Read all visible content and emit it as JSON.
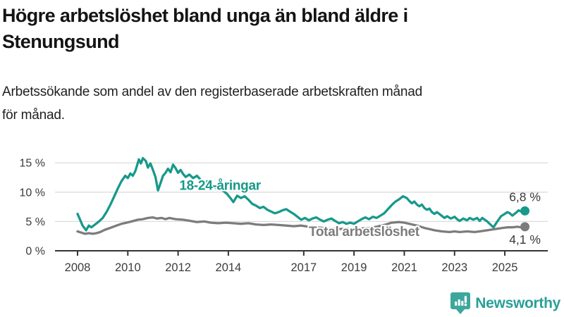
{
  "header": {
    "title_lines": [
      "Högre arbetslöshet bland unga än bland äldre i",
      "Stenungsund"
    ],
    "subtitle_lines": [
      "Arbetssökande som andel av den registerbaserade arbetskraften månad",
      "för månad."
    ]
  },
  "chart_data": {
    "type": "line",
    "title": "Högre arbetslöshet bland unga än bland äldre i Stenungsund",
    "subtitle": "Arbetssökande som andel av den registerbaserade arbetskraften månad för månad.",
    "xlabel": "",
    "ylabel": "",
    "grid": "horizontal-only",
    "x_axis": {
      "ticks": [
        2008,
        2010,
        2012,
        2014,
        2017,
        2019,
        2021,
        2023,
        2025
      ],
      "range": [
        2008,
        2025.8
      ]
    },
    "y_axis": {
      "ticks": [
        0,
        5,
        10,
        15
      ],
      "suffix": " %",
      "range": [
        0,
        16.8
      ]
    },
    "colors": {
      "youth": "#17998a",
      "total": "#7c7c7c",
      "grid": "#dcdcdc",
      "axis": "#333333",
      "tick_text": "#3c3c3c",
      "value_label": "#3a3a3a"
    },
    "series": [
      {
        "name": "18-24-åringar",
        "color": "#17998a",
        "end_value_label": "6,8 %",
        "end_value": 6.8,
        "label_anchor": {
          "x": 2012.05,
          "y": 10.4
        },
        "points": [
          [
            2008.0,
            6.3
          ],
          [
            2008.1,
            5.3
          ],
          [
            2008.2,
            4.3
          ],
          [
            2008.34,
            3.5
          ],
          [
            2008.45,
            4.3
          ],
          [
            2008.55,
            4.0
          ],
          [
            2008.7,
            4.5
          ],
          [
            2008.85,
            5.0
          ],
          [
            2009.0,
            5.6
          ],
          [
            2009.15,
            6.6
          ],
          [
            2009.3,
            7.8
          ],
          [
            2009.45,
            9.2
          ],
          [
            2009.6,
            10.6
          ],
          [
            2009.75,
            11.9
          ],
          [
            2009.9,
            12.8
          ],
          [
            2010.0,
            12.4
          ],
          [
            2010.1,
            13.2
          ],
          [
            2010.2,
            12.8
          ],
          [
            2010.3,
            13.6
          ],
          [
            2010.44,
            15.6
          ],
          [
            2010.52,
            14.9
          ],
          [
            2010.6,
            15.8
          ],
          [
            2010.72,
            15.3
          ],
          [
            2010.8,
            14.2
          ],
          [
            2010.9,
            14.9
          ],
          [
            2011.0,
            13.8
          ],
          [
            2011.1,
            12.6
          ],
          [
            2011.2,
            10.3
          ],
          [
            2011.3,
            11.5
          ],
          [
            2011.4,
            12.8
          ],
          [
            2011.5,
            13.3
          ],
          [
            2011.6,
            14.0
          ],
          [
            2011.7,
            13.4
          ],
          [
            2011.8,
            14.7
          ],
          [
            2011.9,
            14.1
          ],
          [
            2012.0,
            13.3
          ],
          [
            2012.1,
            13.8
          ],
          [
            2012.2,
            13.1
          ],
          [
            2012.3,
            12.6
          ],
          [
            2012.45,
            13.0
          ],
          [
            2012.6,
            12.4
          ],
          [
            2012.75,
            12.8
          ],
          [
            2012.9,
            12.1
          ],
          [
            2013.05,
            11.6
          ],
          [
            2013.2,
            11.9
          ],
          [
            2013.35,
            11.2
          ],
          [
            2013.5,
            10.7
          ],
          [
            2013.65,
            10.9
          ],
          [
            2013.8,
            10.2
          ],
          [
            2013.95,
            9.7
          ],
          [
            2014.1,
            8.9
          ],
          [
            2014.2,
            8.3
          ],
          [
            2014.35,
            9.4
          ],
          [
            2014.5,
            9.0
          ],
          [
            2014.65,
            9.3
          ],
          [
            2014.8,
            8.7
          ],
          [
            2014.95,
            8.0
          ],
          [
            2015.1,
            7.7
          ],
          [
            2015.25,
            7.3
          ],
          [
            2015.4,
            7.5
          ],
          [
            2015.55,
            7.0
          ],
          [
            2015.7,
            6.7
          ],
          [
            2015.85,
            6.4
          ],
          [
            2016.0,
            6.6
          ],
          [
            2016.15,
            6.9
          ],
          [
            2016.3,
            7.1
          ],
          [
            2016.45,
            6.7
          ],
          [
            2016.6,
            6.3
          ],
          [
            2016.75,
            5.8
          ],
          [
            2016.9,
            5.3
          ],
          [
            2017.05,
            5.6
          ],
          [
            2017.2,
            5.2
          ],
          [
            2017.35,
            5.5
          ],
          [
            2017.5,
            5.7
          ],
          [
            2017.65,
            5.3
          ],
          [
            2017.8,
            5.0
          ],
          [
            2017.95,
            5.3
          ],
          [
            2018.1,
            5.5
          ],
          [
            2018.25,
            5.1
          ],
          [
            2018.4,
            4.7
          ],
          [
            2018.55,
            4.9
          ],
          [
            2018.7,
            4.6
          ],
          [
            2018.85,
            4.8
          ],
          [
            2019.0,
            4.6
          ],
          [
            2019.15,
            5.0
          ],
          [
            2019.3,
            5.4
          ],
          [
            2019.45,
            5.7
          ],
          [
            2019.6,
            5.4
          ],
          [
            2019.75,
            5.8
          ],
          [
            2019.9,
            5.6
          ],
          [
            2020.05,
            6.0
          ],
          [
            2020.2,
            6.4
          ],
          [
            2020.35,
            7.1
          ],
          [
            2020.5,
            7.8
          ],
          [
            2020.65,
            8.4
          ],
          [
            2020.8,
            8.8
          ],
          [
            2020.95,
            9.3
          ],
          [
            2021.1,
            9.0
          ],
          [
            2021.2,
            8.5
          ],
          [
            2021.3,
            8.1
          ],
          [
            2021.4,
            8.4
          ],
          [
            2021.5,
            7.9
          ],
          [
            2021.6,
            7.6
          ],
          [
            2021.7,
            7.9
          ],
          [
            2021.8,
            7.3
          ],
          [
            2021.9,
            7.0
          ],
          [
            2022.0,
            7.2
          ],
          [
            2022.1,
            6.6
          ],
          [
            2022.2,
            6.3
          ],
          [
            2022.3,
            6.6
          ],
          [
            2022.45,
            6.1
          ],
          [
            2022.6,
            5.6
          ],
          [
            2022.7,
            5.9
          ],
          [
            2022.85,
            5.5
          ],
          [
            2023.0,
            5.8
          ],
          [
            2023.1,
            5.4
          ],
          [
            2023.2,
            5.1
          ],
          [
            2023.35,
            5.5
          ],
          [
            2023.5,
            5.2
          ],
          [
            2023.6,
            5.6
          ],
          [
            2023.75,
            5.3
          ],
          [
            2023.9,
            5.6
          ],
          [
            2024.0,
            5.1
          ],
          [
            2024.1,
            5.6
          ],
          [
            2024.3,
            5.0
          ],
          [
            2024.45,
            4.4
          ],
          [
            2024.55,
            4.0
          ],
          [
            2024.7,
            5.0
          ],
          [
            2024.85,
            5.9
          ],
          [
            2025.0,
            6.3
          ],
          [
            2025.1,
            6.6
          ],
          [
            2025.2,
            6.4
          ],
          [
            2025.3,
            6.0
          ],
          [
            2025.45,
            6.5
          ],
          [
            2025.55,
            6.9
          ],
          [
            2025.65,
            6.7
          ],
          [
            2025.8,
            6.8
          ]
        ]
      },
      {
        "name": "Total arbetslöshet",
        "color": "#7c7c7c",
        "end_value_label": "4,1 %",
        "end_value": 4.1,
        "label_anchor": {
          "x": 2017.2,
          "y": 2.55
        },
        "points": [
          [
            2008.0,
            3.3
          ],
          [
            2008.15,
            3.1
          ],
          [
            2008.3,
            2.9
          ],
          [
            2008.45,
            3.0
          ],
          [
            2008.6,
            2.9
          ],
          [
            2008.75,
            3.0
          ],
          [
            2008.9,
            3.2
          ],
          [
            2009.1,
            3.6
          ],
          [
            2009.3,
            3.9
          ],
          [
            2009.55,
            4.3
          ],
          [
            2009.75,
            4.6
          ],
          [
            2009.95,
            4.8
          ],
          [
            2010.15,
            5.0
          ],
          [
            2010.4,
            5.3
          ],
          [
            2010.6,
            5.4
          ],
          [
            2010.8,
            5.6
          ],
          [
            2011.0,
            5.7
          ],
          [
            2011.15,
            5.5
          ],
          [
            2011.35,
            5.6
          ],
          [
            2011.5,
            5.4
          ],
          [
            2011.65,
            5.6
          ],
          [
            2011.9,
            5.4
          ],
          [
            2012.2,
            5.3
          ],
          [
            2012.5,
            5.1
          ],
          [
            2012.75,
            4.9
          ],
          [
            2013.05,
            5.0
          ],
          [
            2013.3,
            4.8
          ],
          [
            2013.6,
            4.7
          ],
          [
            2013.9,
            4.8
          ],
          [
            2014.2,
            4.7
          ],
          [
            2014.5,
            4.6
          ],
          [
            2014.8,
            4.7
          ],
          [
            2015.1,
            4.5
          ],
          [
            2015.4,
            4.4
          ],
          [
            2015.7,
            4.5
          ],
          [
            2016.0,
            4.4
          ],
          [
            2016.3,
            4.3
          ],
          [
            2016.6,
            4.2
          ],
          [
            2016.9,
            4.3
          ],
          [
            2017.2,
            4.1
          ],
          [
            2017.5,
            4.0
          ],
          [
            2017.8,
            3.9
          ],
          [
            2018.1,
            3.8
          ],
          [
            2018.4,
            3.7
          ],
          [
            2018.7,
            3.8
          ],
          [
            2019.0,
            3.7
          ],
          [
            2019.3,
            3.8
          ],
          [
            2019.6,
            3.9
          ],
          [
            2019.9,
            4.1
          ],
          [
            2020.2,
            4.4
          ],
          [
            2020.5,
            4.8
          ],
          [
            2020.8,
            4.9
          ],
          [
            2021.0,
            4.8
          ],
          [
            2021.2,
            4.6
          ],
          [
            2021.5,
            4.3
          ],
          [
            2021.8,
            3.9
          ],
          [
            2022.0,
            3.7
          ],
          [
            2022.2,
            3.5
          ],
          [
            2022.5,
            3.3
          ],
          [
            2022.8,
            3.2
          ],
          [
            2023.0,
            3.3
          ],
          [
            2023.2,
            3.2
          ],
          [
            2023.5,
            3.3
          ],
          [
            2023.8,
            3.2
          ],
          [
            2024.0,
            3.3
          ],
          [
            2024.3,
            3.5
          ],
          [
            2024.6,
            3.7
          ],
          [
            2024.9,
            3.9
          ],
          [
            2025.1,
            4.0
          ],
          [
            2025.3,
            4.0
          ],
          [
            2025.5,
            4.1
          ],
          [
            2025.65,
            4.0
          ],
          [
            2025.8,
            4.1
          ]
        ]
      }
    ]
  },
  "footer": {
    "brand": "Newsworthy",
    "brand_color": "#2aa096",
    "icon_color": "#3ea79d"
  }
}
